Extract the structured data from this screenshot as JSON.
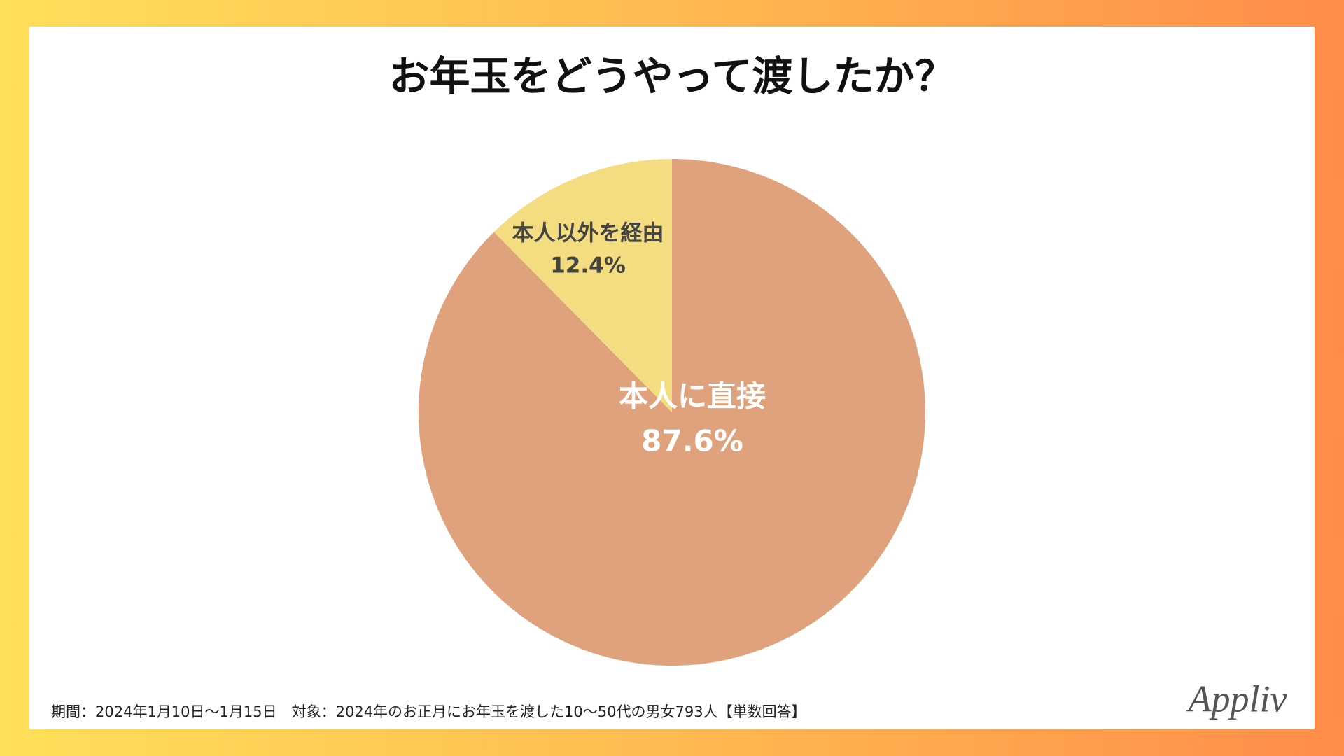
{
  "chart_data": {
    "type": "pie",
    "title": "お年玉をどうやって渡したか？",
    "categories": [
      "本人に直接",
      "本人以外を経由"
    ],
    "values": [
      87.6,
      12.4
    ],
    "value_labels": [
      "87.6%",
      "12.4%"
    ],
    "colors": [
      "#e0a27c",
      "#f4dc80"
    ],
    "footnote": "期間：2024年1月10日〜1月15日　対象：2024年のお正月にお年玉を渡した10〜50代の男女793人【単数回答】",
    "brand": "Appliv"
  }
}
